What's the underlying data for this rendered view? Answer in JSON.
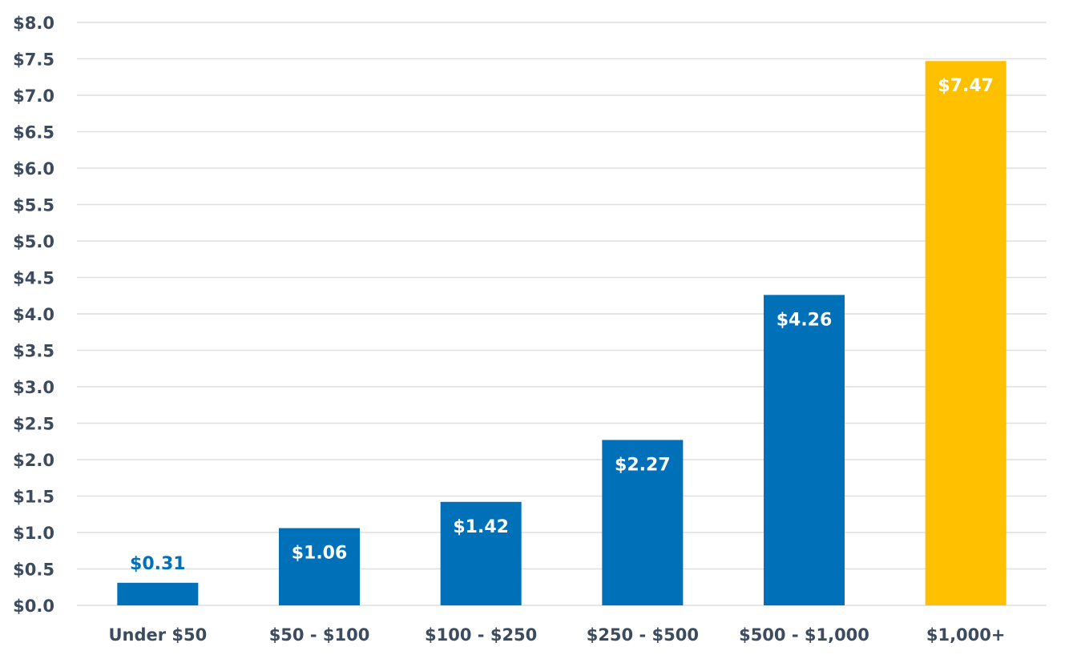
{
  "chart_data": {
    "type": "bar",
    "categories": [
      "Under $50",
      "$50 - $100",
      "$100 - $250",
      "$250 - $500",
      "$500 - $1,000",
      "$1,000+"
    ],
    "values": [
      0.31,
      1.06,
      1.42,
      2.27,
      4.26,
      7.47
    ],
    "data_labels": [
      "$0.31",
      "$1.06",
      "$1.42",
      "$2.27",
      "$4.26",
      "$7.47"
    ],
    "y_ticks": [
      "$0.0",
      "$0.5",
      "$1.0",
      "$1.5",
      "$2.0",
      "$2.5",
      "$3.0",
      "$3.5",
      "$4.0",
      "$4.5",
      "$5.0",
      "$5.5",
      "$6.0",
      "$6.5",
      "$7.0",
      "$7.5",
      "$8.0"
    ],
    "ylim": [
      0,
      8
    ],
    "y_step": 0.5,
    "title": "",
    "xlabel": "",
    "ylabel": "",
    "grid": true,
    "colors": {
      "default_bar": "#0071b9",
      "highlight_bar": "#ffc000",
      "label_inside": "#ffffff",
      "label_outside": "#0071b9",
      "gridline": "#dcdfe3",
      "tick_text": "#3d4b5f"
    },
    "highlight_index": 5
  }
}
